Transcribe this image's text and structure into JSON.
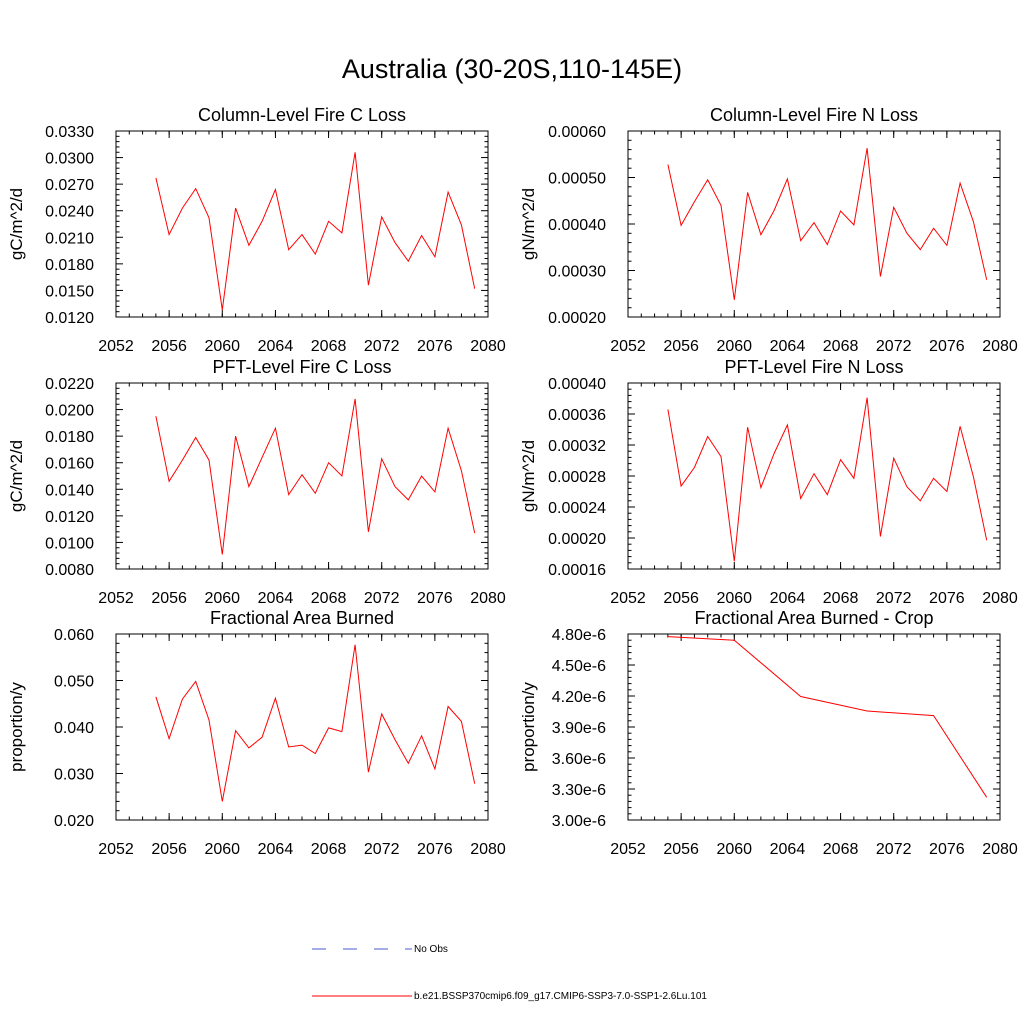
{
  "title": "Australia (30-20S,110-145E)",
  "colors": {
    "model": "#ff0000",
    "obs": "#4a5bd0",
    "axis": "#000000"
  },
  "legend": {
    "obs_label": "No Obs",
    "model_label": "b.e21.BSSP370cmip6.f09_g17.CMIP6-SSP3-7.0-SSP1-2.6Lu.101"
  },
  "chart_data": [
    {
      "type": "line",
      "title": "Column-Level Fire C Loss",
      "ylabel": "gC/m^2/d",
      "xlim": [
        2052,
        2080
      ],
      "xticks": [
        "2052",
        "2056",
        "2060",
        "2064",
        "2068",
        "2072",
        "2076",
        "2080"
      ],
      "ylim": [
        0.012,
        0.033
      ],
      "yticks": [
        "0.0120",
        "0.0150",
        "0.0180",
        "0.0210",
        "0.0240",
        "0.0270",
        "0.0300",
        "0.0330"
      ],
      "x": [
        2055,
        2056,
        2057,
        2058,
        2059,
        2060,
        2061,
        2062,
        2063,
        2064,
        2065,
        2066,
        2067,
        2068,
        2069,
        2070,
        2071,
        2072,
        2073,
        2074,
        2075,
        2076,
        2077,
        2078,
        2079
      ],
      "values": [
        0.0277,
        0.0213,
        0.0243,
        0.0265,
        0.0232,
        0.0128,
        0.0243,
        0.0201,
        0.0228,
        0.0264,
        0.0196,
        0.0213,
        0.0191,
        0.0228,
        0.0215,
        0.0306,
        0.0156,
        0.0233,
        0.0204,
        0.0183,
        0.0212,
        0.0188,
        0.0261,
        0.0224,
        0.0152
      ]
    },
    {
      "type": "line",
      "title": "Column-Level Fire N Loss",
      "ylabel": "gN/m^2/d",
      "xlim": [
        2052,
        2080
      ],
      "xticks": [
        "2052",
        "2056",
        "2060",
        "2064",
        "2068",
        "2072",
        "2076",
        "2080"
      ],
      "ylim": [
        0.0002,
        0.0006
      ],
      "yticks": [
        "0.00020",
        "0.00030",
        "0.00040",
        "0.00050",
        "0.00060"
      ],
      "x": [
        2055,
        2056,
        2057,
        2058,
        2059,
        2060,
        2061,
        2062,
        2063,
        2064,
        2065,
        2066,
        2067,
        2068,
        2069,
        2070,
        2071,
        2072,
        2073,
        2074,
        2075,
        2076,
        2077,
        2078,
        2079
      ],
      "values": [
        0.000528,
        0.000397,
        0.000448,
        0.000495,
        0.00044,
        0.000237,
        0.000468,
        0.000377,
        0.000429,
        0.000497,
        0.000364,
        0.000403,
        0.000356,
        0.000428,
        0.000398,
        0.000563,
        0.000287,
        0.000436,
        0.00038,
        0.000345,
        0.000391,
        0.000354,
        0.000488,
        0.000405,
        0.00028
      ]
    },
    {
      "type": "line",
      "title": "PFT-Level Fire C Loss",
      "ylabel": "gC/m^2/d",
      "xlim": [
        2052,
        2080
      ],
      "xticks": [
        "2052",
        "2056",
        "2060",
        "2064",
        "2068",
        "2072",
        "2076",
        "2080"
      ],
      "ylim": [
        0.008,
        0.022
      ],
      "yticks": [
        "0.0080",
        "0.0100",
        "0.0120",
        "0.0140",
        "0.0160",
        "0.0180",
        "0.0200",
        "0.0220"
      ],
      "x": [
        2055,
        2056,
        2057,
        2058,
        2059,
        2060,
        2061,
        2062,
        2063,
        2064,
        2065,
        2066,
        2067,
        2068,
        2069,
        2070,
        2071,
        2072,
        2073,
        2074,
        2075,
        2076,
        2077,
        2078,
        2079
      ],
      "values": [
        0.0195,
        0.0146,
        0.0162,
        0.0179,
        0.0162,
        0.0091,
        0.018,
        0.0142,
        0.0164,
        0.0186,
        0.0136,
        0.0151,
        0.0137,
        0.016,
        0.015,
        0.0208,
        0.0108,
        0.0163,
        0.0142,
        0.0132,
        0.015,
        0.0138,
        0.0186,
        0.0154,
        0.0107
      ]
    },
    {
      "type": "line",
      "title": "PFT-Level Fire N Loss",
      "ylabel": "gN/m^2/d",
      "xlim": [
        2052,
        2080
      ],
      "xticks": [
        "2052",
        "2056",
        "2060",
        "2064",
        "2068",
        "2072",
        "2076",
        "2080"
      ],
      "ylim": [
        0.00016,
        0.0004
      ],
      "yticks": [
        "0.00016",
        "0.00020",
        "0.00024",
        "0.00028",
        "0.00032",
        "0.00036",
        "0.00040"
      ],
      "x": [
        2055,
        2056,
        2057,
        2058,
        2059,
        2060,
        2061,
        2062,
        2063,
        2064,
        2065,
        2066,
        2067,
        2068,
        2069,
        2070,
        2071,
        2072,
        2073,
        2074,
        2075,
        2076,
        2077,
        2078,
        2079
      ],
      "values": [
        0.000366,
        0.000267,
        0.000291,
        0.000331,
        0.000305,
        0.00017,
        0.000343,
        0.000265,
        0.000309,
        0.000346,
        0.000251,
        0.000283,
        0.000256,
        0.000301,
        0.000277,
        0.000381,
        0.000202,
        0.000303,
        0.000266,
        0.000248,
        0.000277,
        0.00026,
        0.000344,
        0.000279,
        0.000197
      ]
    },
    {
      "type": "line",
      "title": "Fractional Area Burned",
      "ylabel": "proportion/y",
      "xlim": [
        2052,
        2080
      ],
      "xticks": [
        "2052",
        "2056",
        "2060",
        "2064",
        "2068",
        "2072",
        "2076",
        "2080"
      ],
      "ylim": [
        0.02,
        0.06
      ],
      "yticks": [
        "0.020",
        "0.030",
        "0.040",
        "0.050",
        "0.060"
      ],
      "x": [
        2055,
        2056,
        2057,
        2058,
        2059,
        2060,
        2061,
        2062,
        2063,
        2064,
        2065,
        2066,
        2067,
        2068,
        2069,
        2070,
        2071,
        2072,
        2073,
        2074,
        2075,
        2076,
        2077,
        2078,
        2079
      ],
      "values": [
        0.0465,
        0.0375,
        0.046,
        0.0498,
        0.0415,
        0.024,
        0.0392,
        0.0355,
        0.0378,
        0.0462,
        0.0357,
        0.0361,
        0.0343,
        0.0398,
        0.039,
        0.0577,
        0.0303,
        0.0428,
        0.0373,
        0.0322,
        0.0381,
        0.031,
        0.0444,
        0.0412,
        0.0278
      ]
    },
    {
      "type": "line",
      "title": "Fractional Area Burned - Crop",
      "ylabel": "proportion/y",
      "xlim": [
        2052,
        2080
      ],
      "xticks": [
        "2052",
        "2056",
        "2060",
        "2064",
        "2068",
        "2072",
        "2076",
        "2080"
      ],
      "ylim": [
        3e-06,
        4.8e-06
      ],
      "yticks": [
        "3.00e-6",
        "3.30e-6",
        "3.60e-6",
        "3.90e-6",
        "4.20e-6",
        "4.50e-6",
        "4.80e-6"
      ],
      "x": [
        2055,
        2060,
        2065,
        2070,
        2075,
        2079
      ],
      "values": [
        4.775e-06,
        4.74e-06,
        4.195e-06,
        4.055e-06,
        4.01e-06,
        3.22e-06
      ]
    }
  ]
}
